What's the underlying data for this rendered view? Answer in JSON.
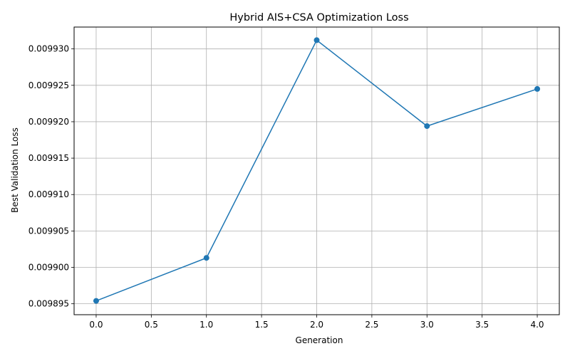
{
  "chart_data": {
    "type": "line",
    "title": "Hybrid AIS+CSA Optimization Loss",
    "xlabel": "Generation",
    "ylabel": "Best Validation Loss",
    "x": [
      0,
      1,
      2,
      3,
      4
    ],
    "y": [
      0.0098954,
      0.0099013,
      0.0099312,
      0.0099194,
      0.0099245
    ],
    "xlim": [
      -0.2,
      4.2
    ],
    "ylim": [
      0.0098935,
      0.009933
    ],
    "xticks": [
      0.0,
      0.5,
      1.0,
      1.5,
      2.0,
      2.5,
      3.0,
      3.5,
      4.0
    ],
    "xtick_labels": [
      "0.0",
      "0.5",
      "1.0",
      "1.5",
      "2.0",
      "2.5",
      "3.0",
      "3.5",
      "4.0"
    ],
    "yticks": [
      0.009895,
      0.0099,
      0.009905,
      0.00991,
      0.009915,
      0.00992,
      0.009925,
      0.00993
    ],
    "ytick_labels": [
      "0.009895",
      "0.009900",
      "0.009905",
      "0.009910",
      "0.009915",
      "0.009920",
      "0.009925",
      "0.009930"
    ],
    "grid": true,
    "marker": "circle",
    "colors": {
      "line": "#1f77b4",
      "grid": "#b0b0b0",
      "axis": "#000000"
    }
  }
}
